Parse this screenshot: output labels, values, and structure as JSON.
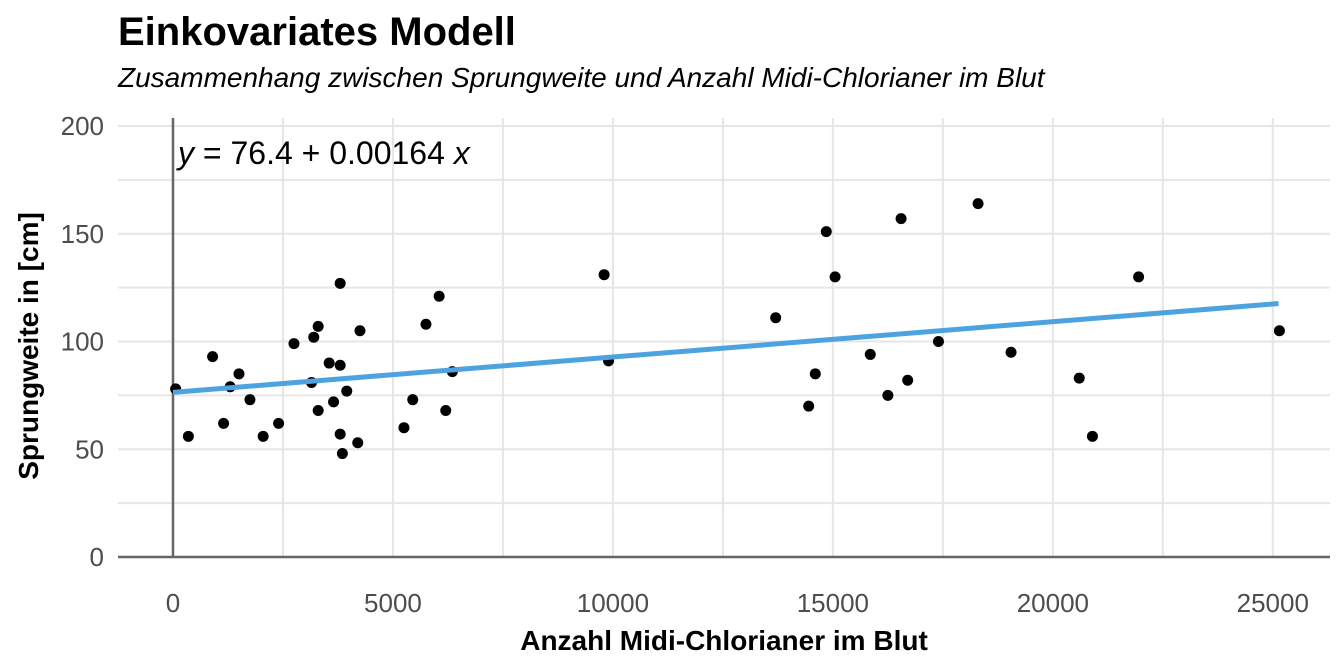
{
  "title": "Einkovariates Modell",
  "subtitle": "Zusammenhang zwischen Sprungweite und Anzahl Midi-Chlorianer im Blut",
  "equation": {
    "y": "y",
    "rhs": " = 76.4 + 0.00164 ",
    "x": "x"
  },
  "colors": {
    "regression_line": "#4da3e0",
    "points": "#000000",
    "grid": "#e6e6e6",
    "axis_lines": "#666666"
  },
  "chart_data": {
    "type": "scatter",
    "title": "Einkovariates Modell",
    "subtitle": "Zusammenhang zwischen Sprungweite und Anzahl Midi-Chlorianer im Blut",
    "xlabel": "Anzahl Midi-Chlorianer im Blut",
    "ylabel": "Sprungweite in [cm]",
    "xlim": [
      -1250,
      26300
    ],
    "ylim": [
      0,
      200
    ],
    "x_ticks": [
      0,
      5000,
      10000,
      15000,
      20000,
      25000
    ],
    "y_ticks": [
      0,
      50,
      100,
      150,
      200
    ],
    "x_tick_labels": [
      "0",
      "5000",
      "10000",
      "15000",
      "20000",
      "25000"
    ],
    "y_tick_labels": [
      "0",
      "50",
      "100",
      "150",
      "200"
    ],
    "grid": true,
    "regression": {
      "intercept": 76.4,
      "slope": 0.00164,
      "x_range": [
        0,
        25130
      ]
    },
    "points": [
      {
        "x": 60,
        "y": 78
      },
      {
        "x": 350,
        "y": 56
      },
      {
        "x": 900,
        "y": 93
      },
      {
        "x": 1150,
        "y": 62
      },
      {
        "x": 1300,
        "y": 79
      },
      {
        "x": 1500,
        "y": 85
      },
      {
        "x": 1750,
        "y": 73
      },
      {
        "x": 2050,
        "y": 56
      },
      {
        "x": 2400,
        "y": 62
      },
      {
        "x": 2750,
        "y": 99
      },
      {
        "x": 3150,
        "y": 81
      },
      {
        "x": 3200,
        "y": 102
      },
      {
        "x": 3300,
        "y": 68
      },
      {
        "x": 3300,
        "y": 107
      },
      {
        "x": 3550,
        "y": 90
      },
      {
        "x": 3650,
        "y": 72
      },
      {
        "x": 3800,
        "y": 127
      },
      {
        "x": 3800,
        "y": 89
      },
      {
        "x": 3800,
        "y": 57
      },
      {
        "x": 3850,
        "y": 48
      },
      {
        "x": 3950,
        "y": 77
      },
      {
        "x": 4200,
        "y": 53
      },
      {
        "x": 4250,
        "y": 105
      },
      {
        "x": 5250,
        "y": 60
      },
      {
        "x": 5450,
        "y": 73
      },
      {
        "x": 5750,
        "y": 108
      },
      {
        "x": 6050,
        "y": 121
      },
      {
        "x": 6200,
        "y": 68
      },
      {
        "x": 6350,
        "y": 86
      },
      {
        "x": 9800,
        "y": 131
      },
      {
        "x": 9900,
        "y": 91
      },
      {
        "x": 13700,
        "y": 111
      },
      {
        "x": 14450,
        "y": 70
      },
      {
        "x": 14600,
        "y": 85
      },
      {
        "x": 14850,
        "y": 151
      },
      {
        "x": 15050,
        "y": 130
      },
      {
        "x": 15850,
        "y": 94
      },
      {
        "x": 16250,
        "y": 75
      },
      {
        "x": 16550,
        "y": 157
      },
      {
        "x": 16700,
        "y": 82
      },
      {
        "x": 17400,
        "y": 100
      },
      {
        "x": 18300,
        "y": 164
      },
      {
        "x": 19050,
        "y": 95
      },
      {
        "x": 20600,
        "y": 83
      },
      {
        "x": 20900,
        "y": 56
      },
      {
        "x": 21950,
        "y": 130
      },
      {
        "x": 25150,
        "y": 105
      }
    ]
  }
}
